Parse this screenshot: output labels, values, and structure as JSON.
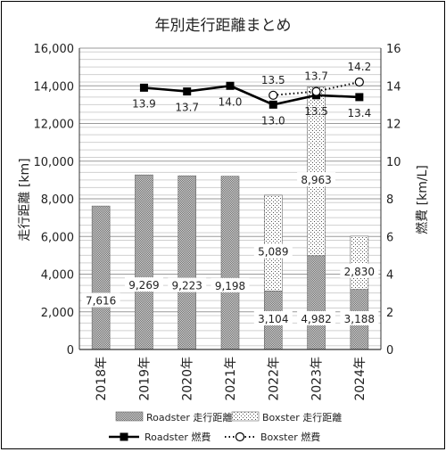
{
  "chart_data": {
    "type": "bar",
    "title": "年別走行距離まとめ",
    "categories": [
      "2018年",
      "2019年",
      "2020年",
      "2021年",
      "2022年",
      "2023年",
      "2024年"
    ],
    "ylabel": "走行距離 [km]",
    "y2label": "燃費 [km/L]",
    "ylim": [
      0,
      16000
    ],
    "y2lim": [
      0,
      16
    ],
    "yticks": [
      "0",
      "2,000",
      "4,000",
      "6,000",
      "8,000",
      "10,000",
      "12,000",
      "14,000",
      "16,000"
    ],
    "y2ticks": [
      "0",
      "2",
      "4",
      "6",
      "8",
      "10",
      "12",
      "14",
      "16"
    ],
    "grid": true,
    "legend_position": "bottom",
    "bar_series": [
      {
        "name": "Roadster 走行距離",
        "values": [
          7616,
          9269,
          9223,
          9198,
          3104,
          4982,
          3188
        ],
        "labels": [
          "7,616",
          "9,269",
          "9,223",
          "9,198",
          "3,104",
          "4,982",
          "3,188"
        ]
      },
      {
        "name": "Boxster 走行距離",
        "values": [
          null,
          null,
          null,
          null,
          5089,
          8963,
          2830
        ],
        "labels": [
          "",
          "",
          "",
          "",
          "5,089",
          "8,963",
          "2,830"
        ]
      }
    ],
    "line_series": [
      {
        "name": "Roadster 燃費",
        "values": [
          null,
          13.9,
          13.7,
          14.0,
          13.0,
          13.5,
          13.4
        ],
        "labels": [
          "",
          "13.9",
          "13.7",
          "14.0",
          "13.0",
          "13.5",
          "13.4"
        ]
      },
      {
        "name": "Boxster 燃費",
        "values": [
          null,
          null,
          null,
          null,
          13.5,
          13.7,
          14.2
        ],
        "labels": [
          "",
          "",
          "",
          "",
          "13.5",
          "13.7",
          "14.2"
        ]
      }
    ]
  }
}
